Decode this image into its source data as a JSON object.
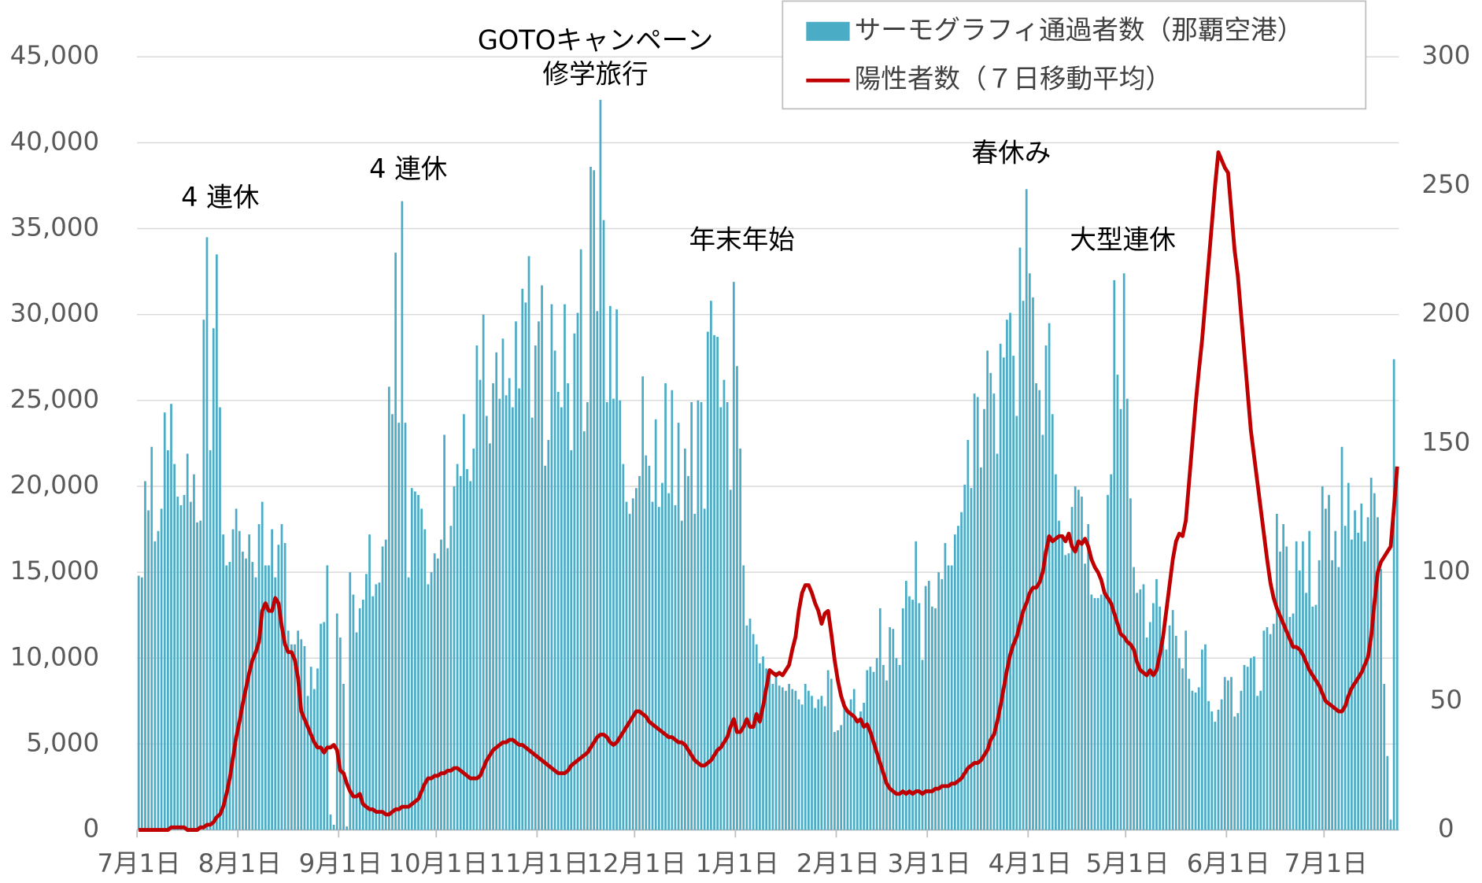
{
  "chart_data": {
    "type": "bar",
    "annotations": [
      "4 連休",
      "4 連休",
      "GOTOキャンペーン",
      "修学旅行",
      "年末年始",
      "春休み",
      "大型連休"
    ],
    "categories": [
      "7月1日",
      null,
      null,
      null,
      null,
      null,
      null,
      null,
      null,
      null,
      null,
      null,
      null,
      null,
      null,
      null,
      null,
      null,
      null,
      null,
      null,
      null,
      null,
      null,
      null,
      null,
      null,
      null,
      null,
      null,
      null,
      "8月1日",
      null,
      null,
      null,
      null,
      null,
      null,
      null,
      null,
      null,
      null,
      null,
      null,
      null,
      null,
      null,
      null,
      null,
      null,
      null,
      null,
      null,
      null,
      null,
      null,
      null,
      null,
      null,
      null,
      null,
      null,
      "9月1日",
      null,
      null,
      null,
      null,
      null,
      null,
      null,
      null,
      null,
      null,
      null,
      null,
      null,
      null,
      null,
      null,
      null,
      null,
      null,
      null,
      null,
      null,
      null,
      null,
      null,
      null,
      null,
      null,
      null,
      "10月1日",
      null,
      null,
      null,
      null,
      null,
      null,
      null,
      null,
      null,
      null,
      null,
      null,
      null,
      null,
      null,
      null,
      null,
      null,
      null,
      null,
      null,
      null,
      null,
      null,
      null,
      null,
      null,
      null,
      null,
      null,
      "11月1日",
      null,
      null,
      null,
      null,
      null,
      null,
      null,
      null,
      null,
      null,
      null,
      null,
      null,
      null,
      null,
      null,
      null,
      null,
      null,
      null,
      null,
      null,
      null,
      null,
      null,
      null,
      null,
      null,
      null,
      "12月1日",
      null,
      null,
      null,
      null,
      null,
      null,
      null,
      null,
      null,
      null,
      null,
      null,
      null,
      null,
      null,
      null,
      null,
      null,
      null,
      null,
      null,
      null,
      null,
      null,
      null,
      null,
      null,
      null,
      null,
      null,
      "1月1日",
      null,
      null,
      null,
      null,
      null,
      null,
      null,
      null,
      null,
      null,
      null,
      null,
      null,
      null,
      null,
      null,
      null,
      null,
      null,
      null,
      null,
      null,
      null,
      null,
      null,
      null,
      null,
      null,
      null,
      null,
      "2月1日",
      null,
      null,
      null,
      null,
      null,
      null,
      null,
      null,
      null,
      null,
      null,
      null,
      null,
      null,
      null,
      null,
      null,
      null,
      null,
      null,
      null,
      null,
      null,
      null,
      null,
      null,
      null,
      "3月1日",
      null,
      null,
      null,
      null,
      null,
      null,
      null,
      null,
      null,
      null,
      null,
      null,
      null,
      null,
      null,
      null,
      null,
      null,
      null,
      null,
      null,
      null,
      null,
      null,
      null,
      null,
      null,
      null,
      null,
      null,
      "4月1日",
      null,
      null,
      null,
      null,
      null,
      null,
      null,
      null,
      null,
      null,
      null,
      null,
      null,
      null,
      null,
      null,
      null,
      null,
      null,
      null,
      null,
      null,
      null,
      null,
      null,
      null,
      null,
      null,
      null,
      "5月1日",
      null,
      null,
      null,
      null,
      null,
      null,
      null,
      null,
      null,
      null,
      null,
      null,
      null,
      null,
      null,
      null,
      null,
      null,
      null,
      null,
      null,
      null,
      null,
      null,
      null,
      null,
      null,
      null,
      null,
      null,
      "6月1日",
      null,
      null,
      null,
      null,
      null,
      null,
      null,
      null,
      null,
      null,
      null,
      null,
      null,
      null,
      null,
      null,
      null,
      null,
      null,
      null,
      null,
      null,
      null,
      null,
      null,
      null,
      null,
      null,
      null,
      "7月1日",
      null,
      null,
      null,
      null,
      null,
      null,
      null,
      null,
      null,
      null,
      null,
      null,
      null,
      null,
      null,
      null,
      null,
      null,
      null,
      null,
      null,
      null
    ],
    "series": [
      {
        "name": "サーモグラフィ通過者数（那覇空港）",
        "type": "bar",
        "color": "#4bacc6",
        "values": [
          14800,
          14700,
          20300,
          18600,
          22300,
          16800,
          17400,
          18700,
          24300,
          22100,
          24800,
          21300,
          19400,
          18900,
          19500,
          21900,
          19100,
          20700,
          17900,
          18000,
          29700,
          34500,
          22100,
          29200,
          33500,
          24600,
          17200,
          15400,
          15600,
          17500,
          18700,
          17400,
          16200,
          15800,
          17200,
          15600,
          14700,
          17800,
          19100,
          15400,
          15400,
          17500,
          14700,
          16600,
          17800,
          16700,
          11600,
          10800,
          10800,
          11600,
          11100,
          10700,
          7800,
          9500,
          8200,
          9400,
          12000,
          12100,
          15400,
          900,
          300,
          12600,
          11200,
          8500,
          200,
          15000,
          13700,
          11500,
          12900,
          13400,
          14900,
          17200,
          13600,
          14300,
          14400,
          16500,
          16900,
          25800,
          24200,
          33600,
          23700,
          36600,
          23700,
          14700,
          19900,
          19700,
          19500,
          18700,
          17500,
          14300,
          15000,
          16100,
          15800,
          16900,
          23000,
          16400,
          17700,
          20000,
          21300,
          20600,
          24200,
          21000,
          20300,
          22200,
          28200,
          26200,
          30000,
          24100,
          22500,
          26000,
          27800,
          25100,
          28600,
          25300,
          26300,
          24600,
          29600,
          25700,
          31500,
          30700,
          33400,
          24000,
          28200,
          29600,
          31700,
          21200,
          22700,
          30600,
          27900,
          25500,
          24600,
          30600,
          26000,
          22100,
          28900,
          30100,
          33800,
          23200,
          24900,
          38600,
          38400,
          30200,
          42500,
          35500,
          24900,
          30500,
          25100,
          30300,
          25000,
          21300,
          19100,
          18400,
          19300,
          19900,
          20600,
          26400,
          21800,
          21200,
          19100,
          23900,
          18800,
          20200,
          26000,
          19600,
          25600,
          18900,
          23700,
          18000,
          22200,
          20600,
          24900,
          18400,
          25000,
          24900,
          18700,
          29000,
          30800,
          28800,
          28700,
          24600,
          26200,
          24900,
          19800,
          31900,
          27000,
          22200,
          15400,
          11900,
          12300,
          11400,
          10800,
          9700,
          10100,
          9400,
          8900,
          8500,
          9200,
          8400,
          8300,
          8100,
          8500,
          8200,
          8100,
          7600,
          7300,
          8500,
          8100,
          7800,
          7100,
          7600,
          7800,
          7200,
          9300,
          8800,
          5700,
          5800,
          6100,
          7500,
          6900,
          7600,
          8200,
          6200,
          6900,
          7400,
          9300,
          9500,
          9200,
          10000,
          12900,
          9600,
          8700,
          11800,
          11700,
          10000,
          9600,
          12900,
          14500,
          13600,
          13400,
          16800,
          13200,
          9900,
          14200,
          14500,
          13000,
          12900,
          15000,
          14600,
          16700,
          15400,
          15400,
          17200,
          17700,
          18500,
          20100,
          22700,
          19900,
          25400,
          25200,
          21100,
          24500,
          27900,
          26600,
          25400,
          21900,
          28300,
          27500,
          29700,
          30100,
          27600,
          24100,
          33900,
          30800,
          37300,
          32400,
          31000,
          26000,
          25600,
          23000,
          28200,
          29500,
          24200,
          20700,
          18000,
          17200,
          16000,
          16100,
          18800,
          20000,
          19800,
          19400,
          15500,
          17800,
          13700,
          13500,
          13500,
          13700,
          13700,
          19500,
          20700,
          32000,
          26500,
          24500,
          32400,
          25100,
          19300,
          15300,
          13800,
          14000,
          14300,
          11200,
          12100,
          13200,
          14600,
          13000,
          11500,
          10500,
          11900,
          12800,
          11300,
          10000,
          9400,
          11600,
          8800,
          8100,
          8000,
          8300,
          10500,
          10800,
          7500,
          6900,
          6300,
          7000,
          7600,
          8900,
          8700,
          8900,
          6600,
          6800,
          8100,
          9600,
          9500,
          10000,
          10100,
          7800,
          8100,
          11600,
          11800,
          11400,
          12000,
          18400,
          16200,
          17800,
          16500,
          12400,
          12600,
          16800,
          15100,
          16800,
          13800,
          17400,
          13000,
          13100,
          15700,
          20000,
          18700,
          19500,
          15700,
          17400,
          15300,
          22300,
          17700,
          20200,
          16900,
          18600,
          17300,
          19000,
          16800,
          18200,
          20500,
          19600,
          18200,
          15200,
          8500,
          4300,
          600,
          27400,
          21100
        ]
      },
      {
        "name": "陽性者数（７日移動平均）",
        "type": "line",
        "axis": "y2",
        "color": "#c00000",
        "values": [
          0,
          0,
          0,
          0,
          0,
          0,
          0,
          0,
          0,
          0,
          1,
          1,
          1,
          1,
          1,
          0,
          0,
          0,
          0,
          1,
          1,
          2,
          2,
          3,
          5,
          6,
          9,
          14,
          20,
          28,
          36,
          42,
          49,
          55,
          61,
          66,
          69,
          73,
          85,
          88,
          85,
          85,
          90,
          88,
          79,
          72,
          69,
          69,
          66,
          59,
          46,
          43,
          40,
          37,
          34,
          32,
          32,
          30,
          32,
          32,
          33,
          31,
          23,
          22,
          18,
          15,
          13,
          13,
          14,
          10,
          9,
          8,
          8,
          7,
          7,
          7,
          6,
          6,
          7,
          8,
          8,
          9,
          9,
          9,
          10,
          11,
          12,
          15,
          18,
          20,
          20,
          21,
          21,
          22,
          22,
          23,
          23,
          24,
          24,
          23,
          22,
          21,
          20,
          20,
          20,
          21,
          24,
          27,
          29,
          31,
          32,
          33,
          34,
          34,
          35,
          35,
          34,
          33,
          33,
          32,
          31,
          30,
          29,
          28,
          27,
          26,
          25,
          24,
          23,
          22,
          22,
          22,
          23,
          25,
          26,
          27,
          28,
          29,
          30,
          32,
          34,
          36,
          37,
          37,
          36,
          34,
          33,
          34,
          36,
          38,
          40,
          42,
          44,
          46,
          46,
          45,
          44,
          42,
          41,
          40,
          39,
          38,
          37,
          36,
          36,
          35,
          34,
          34,
          33,
          31,
          29,
          27,
          26,
          25,
          25,
          26,
          27,
          29,
          31,
          32,
          34,
          36,
          40,
          43,
          38,
          38,
          40,
          43,
          40,
          40,
          45,
          42,
          48,
          55,
          62,
          61,
          60,
          61,
          60,
          62,
          64,
          70,
          75,
          85,
          92,
          95,
          95,
          92,
          88,
          85,
          80,
          84,
          85,
          76,
          66,
          58,
          52,
          48,
          46,
          45,
          44,
          42,
          43,
          40,
          41,
          38,
          34,
          30,
          26,
          22,
          18,
          16,
          15,
          14,
          14,
          15,
          14,
          15,
          14,
          15,
          15,
          14,
          15,
          15,
          15,
          16,
          16,
          17,
          17,
          17,
          18,
          18,
          19,
          20,
          22,
          24,
          25,
          26,
          26,
          27,
          29,
          31,
          35,
          37,
          42,
          48,
          55,
          62,
          68,
          72,
          75,
          80,
          85,
          88,
          92,
          94,
          94,
          96,
          100,
          108,
          114,
          112,
          113,
          114,
          114,
          112,
          115,
          110,
          108,
          112,
          111,
          113,
          110,
          105,
          102,
          100,
          97,
          92,
          90,
          88,
          84,
          80,
          76,
          75,
          73,
          72,
          70,
          65,
          62,
          61,
          60,
          62,
          60,
          62,
          68,
          75,
          85,
          95,
          105,
          112,
          115,
          114,
          120,
          135,
          150,
          165,
          178,
          190,
          205,
          220,
          235,
          250,
          263,
          260,
          257,
          255,
          240,
          225,
          215,
          200,
          185,
          170,
          155,
          145,
          135,
          125,
          115,
          105,
          96,
          90,
          86,
          83,
          80,
          77,
          74,
          71,
          71,
          70,
          68,
          65,
          62,
          60,
          58,
          56,
          53,
          50,
          49,
          48,
          47,
          46,
          46,
          48,
          52,
          55,
          57,
          59,
          61,
          64,
          67,
          75,
          88,
          100,
          104,
          106,
          108,
          110,
          125,
          141
        ]
      }
    ],
    "ylim": [
      0,
      45000
    ],
    "yticks": [
      0,
      {
        "value": 5000,
        "label": "5,000"
      },
      {
        "value": 10000,
        "label": "10,000"
      },
      {
        "value": 15000,
        "label": "15,000"
      },
      {
        "value": 20000,
        "label": "20,000"
      },
      {
        "value": 25000,
        "label": "25,000"
      },
      {
        "value": 30000,
        "label": "30,000"
      },
      {
        "value": 35000,
        "label": "35,000"
      },
      {
        "value": 40000,
        "label": "40,000"
      },
      {
        "value": 45000,
        "label": "45,000"
      }
    ],
    "y2lim": [
      0,
      300
    ],
    "y2ticks": [
      0,
      50,
      100,
      150,
      200,
      250,
      300
    ],
    "grid": true,
    "legend": "upper right"
  }
}
